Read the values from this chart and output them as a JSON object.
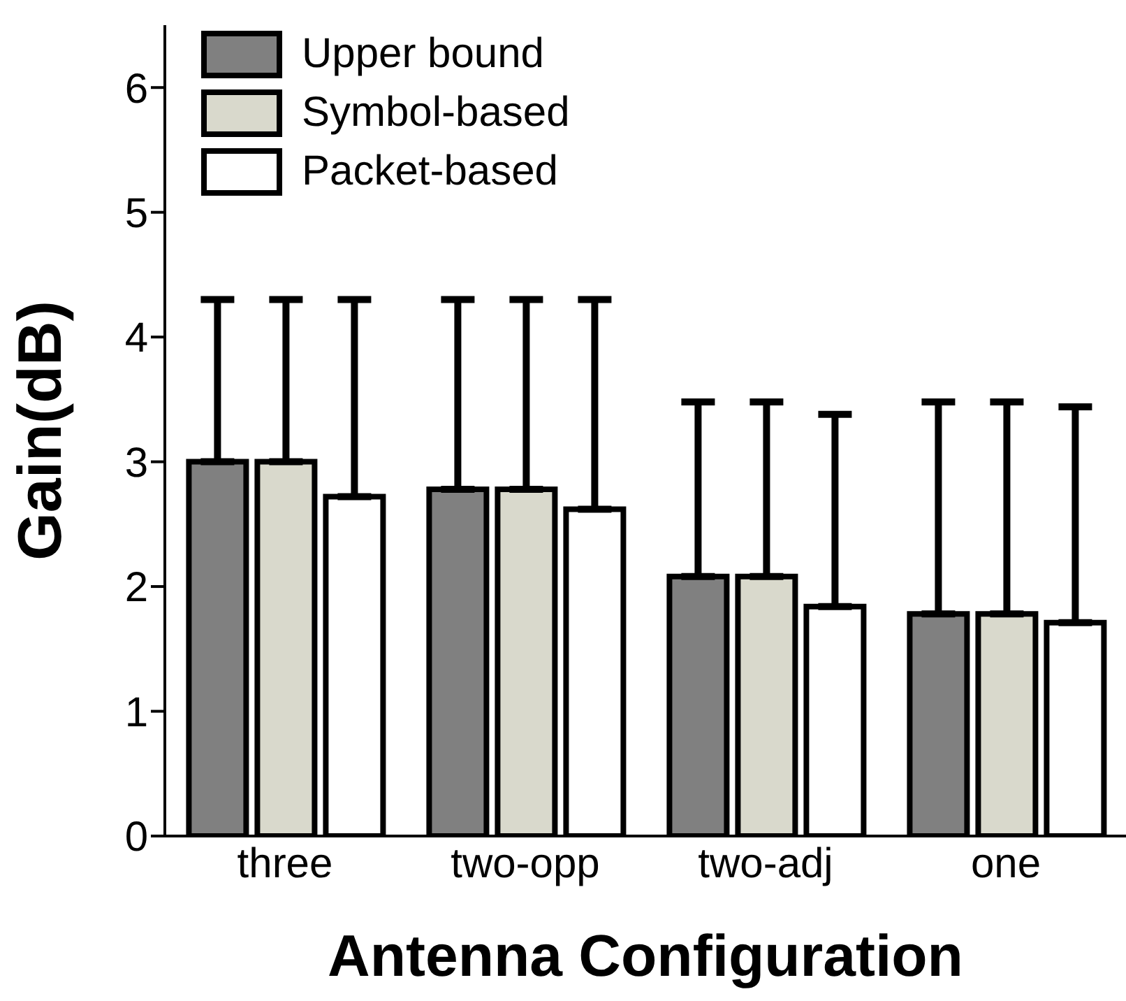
{
  "chart_data": {
    "type": "bar",
    "xlabel": "Antenna Configuration",
    "ylabel": "Gain(dB)",
    "categories": [
      "three",
      "two-opp",
      "two-adj",
      "one"
    ],
    "series": [
      {
        "name": "Upper bound",
        "color": "#808080",
        "values": [
          3.0,
          2.78,
          2.08,
          1.78
        ],
        "errors": [
          [
            3.0,
            4.3
          ],
          [
            2.78,
            4.3
          ],
          [
            2.08,
            3.48
          ],
          [
            1.78,
            3.48
          ]
        ]
      },
      {
        "name": "Symbol-based",
        "color": "#d9d9cc",
        "values": [
          3.0,
          2.78,
          2.08,
          1.78
        ],
        "errors": [
          [
            3.0,
            4.3
          ],
          [
            2.78,
            4.3
          ],
          [
            2.08,
            3.48
          ],
          [
            1.78,
            3.48
          ]
        ]
      },
      {
        "name": "Packet-based",
        "color": "#ffffff",
        "values": [
          2.72,
          2.62,
          1.84,
          1.71
        ],
        "errors": [
          [
            2.72,
            4.3
          ],
          [
            2.62,
            4.3
          ],
          [
            1.84,
            3.38
          ],
          [
            1.71,
            3.44
          ]
        ]
      }
    ],
    "ylim": [
      0,
      6.5
    ],
    "yticks": [
      0,
      1,
      2,
      3,
      4,
      5,
      6
    ],
    "grid": false,
    "legend": "top left"
  }
}
